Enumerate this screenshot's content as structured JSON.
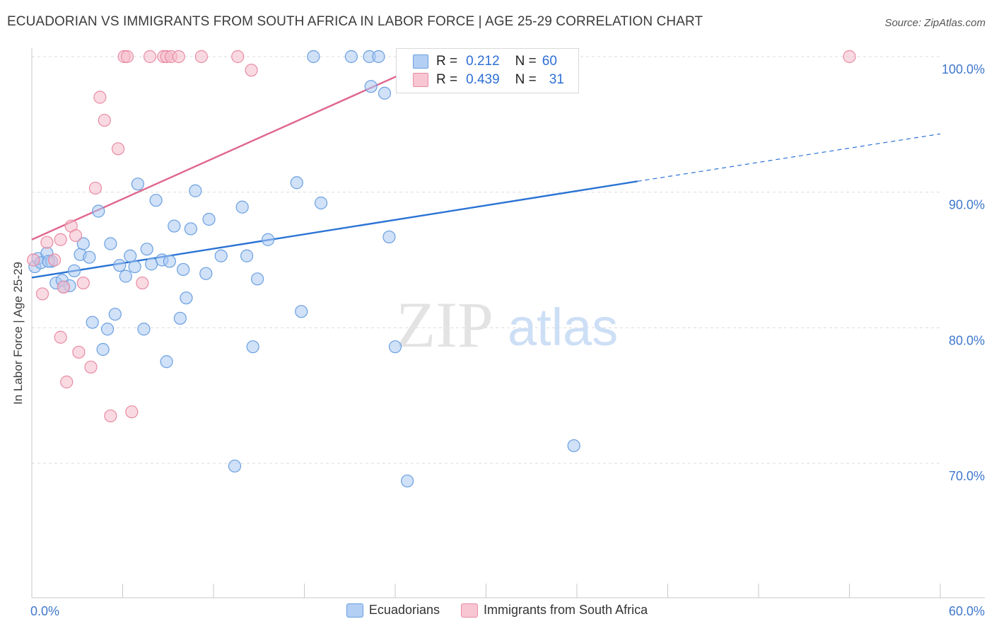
{
  "title": "ECUADORIAN VS IMMIGRANTS FROM SOUTH AFRICA IN LABOR FORCE | AGE 25-29 CORRELATION CHART",
  "source": "Source: ZipAtlas.com",
  "watermark": {
    "zip": "ZIP",
    "atlas": "atlas"
  },
  "colors": {
    "blue_fill": "#a9c8f2",
    "blue_stroke": "#6a9fe0",
    "blue_line": "#2a73d4",
    "pink_fill": "#f6bccb",
    "pink_stroke": "#e88aa3",
    "pink_line": "#e0668d",
    "tick_text": "#3f78cc",
    "grid": "#dcdcdc"
  },
  "stats": {
    "row1": {
      "r_label": "R =",
      "r_value": "0.212",
      "n_label": "N =",
      "n_value": "60"
    },
    "row2": {
      "r_label": "R =",
      "r_value": "0.439",
      "n_label": "N =",
      "n_value": "31"
    }
  },
  "chart_data": {
    "type": "scatter",
    "ylabel": "In Labor Force | Age 25-29",
    "xlim": [
      0,
      60
    ],
    "ylim": [
      60,
      103
    ],
    "x_tick_labels": [
      "0.0%",
      "60.0%"
    ],
    "y_ticks": [
      70,
      80,
      90,
      100
    ],
    "y_tick_labels": [
      "70.0%",
      "80.0%",
      "90.0%",
      "100.0%"
    ],
    "series": [
      {
        "name": "Ecuadorians",
        "color": "blue",
        "trend": {
          "x0": 0,
          "y0": 83.7,
          "x1": 40,
          "y1": 90.8,
          "dash_to_x": 60,
          "dash_to_y": 94.3
        },
        "points": [
          [
            0.2,
            84.5
          ],
          [
            0.4,
            85.1
          ],
          [
            0.6,
            84.8
          ],
          [
            1.0,
            85.5
          ],
          [
            1.3,
            84.9
          ],
          [
            1.6,
            83.3
          ],
          [
            2.0,
            83.5
          ],
          [
            2.5,
            83.1
          ],
          [
            2.8,
            84.2
          ],
          [
            3.2,
            85.4
          ],
          [
            3.4,
            86.2
          ],
          [
            3.8,
            85.2
          ],
          [
            4.0,
            80.4
          ],
          [
            4.4,
            88.6
          ],
          [
            4.7,
            78.4
          ],
          [
            5.0,
            79.9
          ],
          [
            5.2,
            86.2
          ],
          [
            5.5,
            81.0
          ],
          [
            5.8,
            84.6
          ],
          [
            6.2,
            83.8
          ],
          [
            6.5,
            85.3
          ],
          [
            6.8,
            84.5
          ],
          [
            7.0,
            90.6
          ],
          [
            7.4,
            79.9
          ],
          [
            7.6,
            85.8
          ],
          [
            7.9,
            84.7
          ],
          [
            8.2,
            89.4
          ],
          [
            8.6,
            85.0
          ],
          [
            8.9,
            77.5
          ],
          [
            9.1,
            84.9
          ],
          [
            9.4,
            87.5
          ],
          [
            10.0,
            84.3
          ],
          [
            10.2,
            82.2
          ],
          [
            9.8,
            80.7
          ],
          [
            10.5,
            87.3
          ],
          [
            10.8,
            90.1
          ],
          [
            11.5,
            84.0
          ],
          [
            11.7,
            88.0
          ],
          [
            12.5,
            85.3
          ],
          [
            13.4,
            69.8
          ],
          [
            13.9,
            88.9
          ],
          [
            14.2,
            85.3
          ],
          [
            14.6,
            78.6
          ],
          [
            14.9,
            83.6
          ],
          [
            15.6,
            86.5
          ],
          [
            17.5,
            90.7
          ],
          [
            17.8,
            81.2
          ],
          [
            19.1,
            89.2
          ],
          [
            18.6,
            100.0
          ],
          [
            21.1,
            100.0
          ],
          [
            22.3,
            100.0
          ],
          [
            22.9,
            100.0
          ],
          [
            22.4,
            97.8
          ],
          [
            23.3,
            97.3
          ],
          [
            23.6,
            86.7
          ],
          [
            24.0,
            78.6
          ],
          [
            24.8,
            68.7
          ],
          [
            35.8,
            71.3
          ],
          [
            1.1,
            84.9
          ],
          [
            2.1,
            83.0
          ]
        ]
      },
      {
        "name": "Immigrants from South Africa",
        "color": "pink",
        "trend": {
          "x0": 0,
          "y0": 86.5,
          "x1": 27,
          "y1": 100.0
        },
        "points": [
          [
            0.1,
            85.0
          ],
          [
            0.7,
            82.5
          ],
          [
            1.0,
            86.3
          ],
          [
            1.5,
            85.0
          ],
          [
            1.9,
            86.5
          ],
          [
            2.1,
            83.0
          ],
          [
            2.3,
            76.0
          ],
          [
            1.9,
            79.3
          ],
          [
            2.6,
            87.5
          ],
          [
            2.9,
            86.8
          ],
          [
            3.1,
            78.2
          ],
          [
            3.4,
            83.3
          ],
          [
            3.9,
            77.1
          ],
          [
            4.2,
            90.3
          ],
          [
            4.5,
            97.0
          ],
          [
            4.8,
            95.3
          ],
          [
            5.2,
            73.5
          ],
          [
            5.7,
            93.2
          ],
          [
            6.1,
            100.0
          ],
          [
            6.3,
            100.0
          ],
          [
            6.6,
            73.8
          ],
          [
            7.3,
            83.3
          ],
          [
            7.8,
            100.0
          ],
          [
            8.7,
            100.0
          ],
          [
            8.9,
            100.0
          ],
          [
            9.2,
            100.0
          ],
          [
            9.7,
            100.0
          ],
          [
            11.2,
            100.0
          ],
          [
            13.6,
            100.0
          ],
          [
            14.5,
            99.0
          ],
          [
            54.0,
            100.0
          ]
        ]
      }
    ]
  }
}
